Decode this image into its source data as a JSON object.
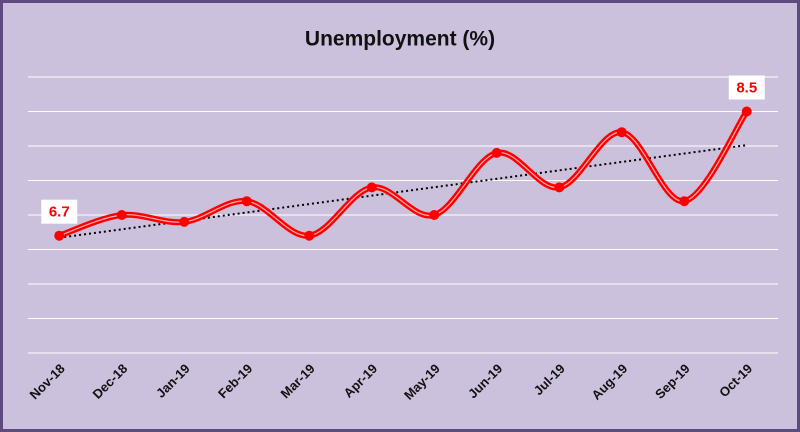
{
  "chart_data": {
    "type": "line",
    "title": "Unemployment (%)",
    "categories": [
      "Nov-18",
      "Dec-18",
      "Jan-19",
      "Feb-19",
      "Mar-19",
      "Apr-19",
      "May-19",
      "Jun-19",
      "Jul-19",
      "Aug-19",
      "Sep-19",
      "Oct-19"
    ],
    "values": [
      6.7,
      7.0,
      6.9,
      7.2,
      6.7,
      7.4,
      7.0,
      7.9,
      7.4,
      8.2,
      7.2,
      8.5
    ],
    "color": "#ff0000",
    "ylim": [
      5,
      9
    ],
    "yticks": [
      5,
      5.5,
      6,
      6.5,
      7,
      7.5,
      8,
      8.5,
      9
    ],
    "grid": true,
    "smooth": true,
    "trendline": "linear"
  }
}
